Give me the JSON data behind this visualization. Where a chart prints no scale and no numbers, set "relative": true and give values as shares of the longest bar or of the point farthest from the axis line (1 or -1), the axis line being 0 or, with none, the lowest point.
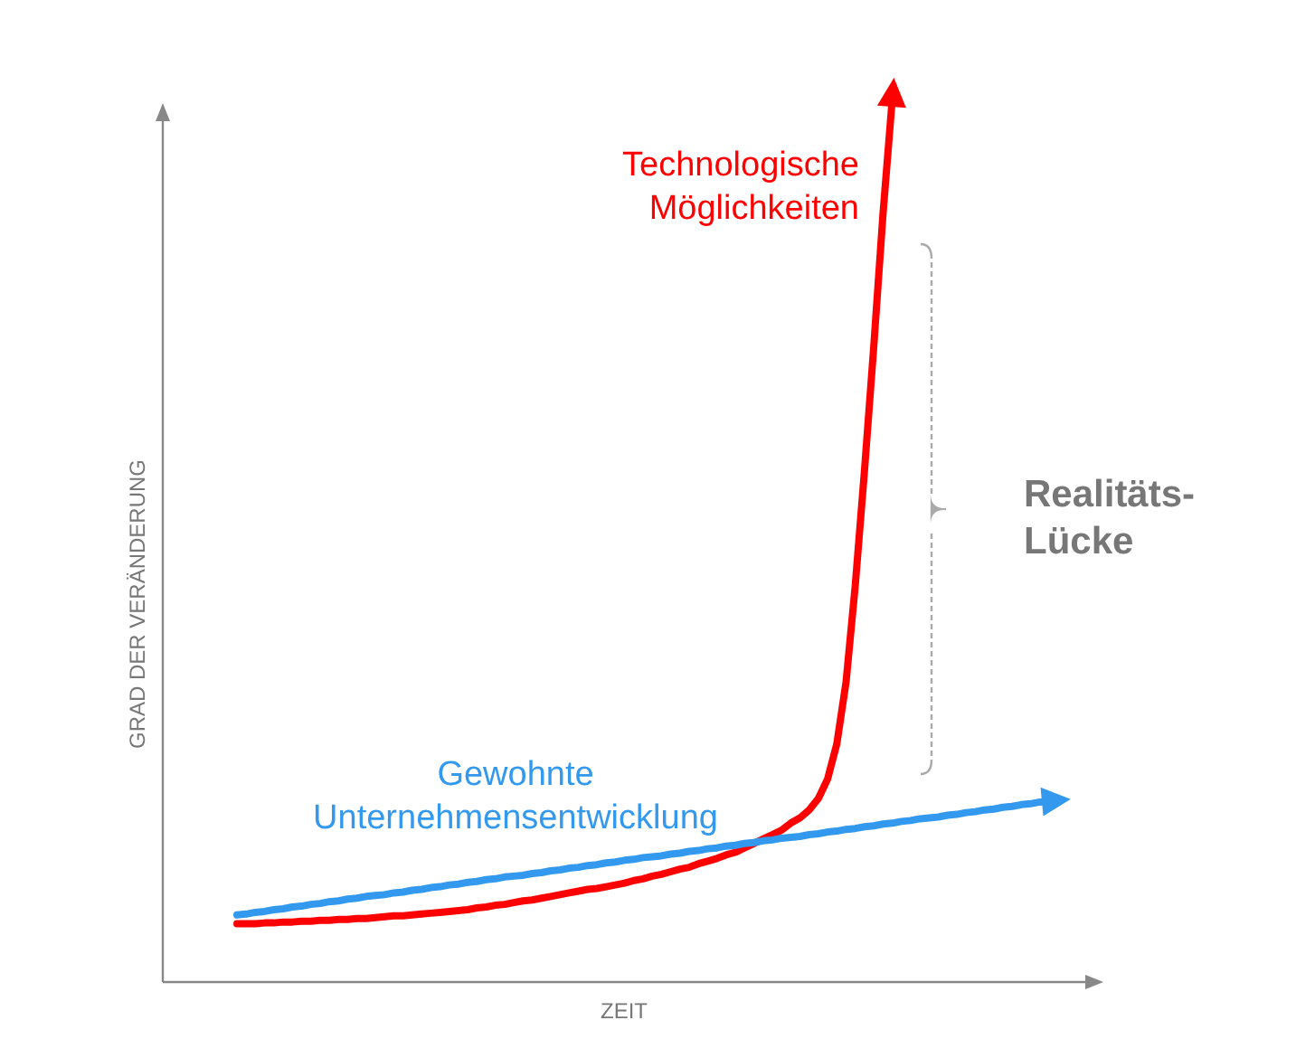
{
  "chart_data": {
    "type": "line",
    "relative": true,
    "xlabel": "ZEIT",
    "ylabel": "GRAD DER VERÄNDERUNG",
    "annotations": [
      "Realitäts-Lücke"
    ],
    "categories": [
      null,
      null,
      null,
      null,
      null,
      null,
      null,
      null,
      null,
      null,
      null,
      null,
      null,
      null,
      null,
      null,
      null,
      null,
      null,
      null,
      null,
      null,
      null,
      null,
      null,
      null,
      null,
      null,
      null,
      null,
      null,
      null,
      null,
      null,
      null,
      null,
      null,
      null,
      null,
      null,
      null,
      null,
      null,
      null,
      null,
      null,
      null,
      null,
      null,
      null,
      null,
      null,
      null,
      null,
      null,
      null,
      null,
      null,
      null,
      null,
      null,
      null,
      null,
      null,
      null,
      null,
      null,
      null,
      null,
      null,
      null,
      null,
      null,
      null,
      null,
      null,
      null,
      null,
      null,
      null,
      null,
      null,
      null,
      null,
      null,
      null,
      null,
      null,
      null
    ],
    "series": [
      {
        "name": "Technologische Möglichkeiten",
        "color": "#ff0000",
        "values": [
          0.066,
          0.066,
          0.066,
          0.067,
          0.067,
          0.068,
          0.068,
          0.069,
          0.069,
          0.07,
          0.07,
          0.071,
          0.071,
          0.072,
          0.072,
          0.073,
          0.074,
          0.075,
          0.075,
          0.076,
          0.077,
          0.078,
          0.079,
          0.08,
          0.081,
          0.082,
          0.084,
          0.085,
          0.087,
          0.088,
          0.09,
          0.092,
          0.093,
          0.095,
          0.097,
          0.099,
          0.101,
          0.103,
          0.105,
          0.106,
          0.108,
          0.11,
          0.112,
          0.115,
          0.117,
          0.12,
          0.122,
          0.125,
          0.128,
          0.13,
          0.134,
          0.137,
          0.14,
          0.144,
          0.147,
          0.152,
          0.157,
          0.162,
          0.167,
          0.172,
          0.18,
          0.186,
          0.195,
          0.208,
          0.23,
          0.27,
          0.34,
          0.45,
          0.58,
          0.72,
          0.87,
          1.0,
          null,
          null,
          null,
          null,
          null,
          null,
          null,
          null,
          null,
          null,
          null,
          null,
          null,
          null,
          null,
          null,
          null
        ]
      },
      {
        "name": "Gewohnte Unternehmensentwicklung",
        "color": "#3399ee",
        "values": [
          0.076,
          0.077,
          0.079,
          0.08,
          0.082,
          0.083,
          0.085,
          0.086,
          0.088,
          0.089,
          0.091,
          0.092,
          0.094,
          0.095,
          0.097,
          0.098,
          0.099,
          0.101,
          0.102,
          0.104,
          0.105,
          0.107,
          0.108,
          0.11,
          0.111,
          0.113,
          0.114,
          0.116,
          0.117,
          0.119,
          0.12,
          0.121,
          0.123,
          0.124,
          0.126,
          0.127,
          0.129,
          0.13,
          0.132,
          0.133,
          0.135,
          0.136,
          0.138,
          0.139,
          0.141,
          0.142,
          0.143,
          0.145,
          0.146,
          0.148,
          0.149,
          0.151,
          0.152,
          0.154,
          0.155,
          0.157,
          0.158,
          0.16,
          0.161,
          0.163,
          0.164,
          0.165,
          0.167,
          0.168,
          0.17,
          0.171,
          0.173,
          0.174,
          0.176,
          0.177,
          0.179,
          0.18,
          0.182,
          0.183,
          0.185,
          0.186,
          0.187,
          0.189,
          0.19,
          0.192,
          0.193,
          0.195,
          0.196,
          0.198,
          0.199,
          0.201,
          0.202,
          0.204,
          0.205
        ]
      }
    ]
  }
}
